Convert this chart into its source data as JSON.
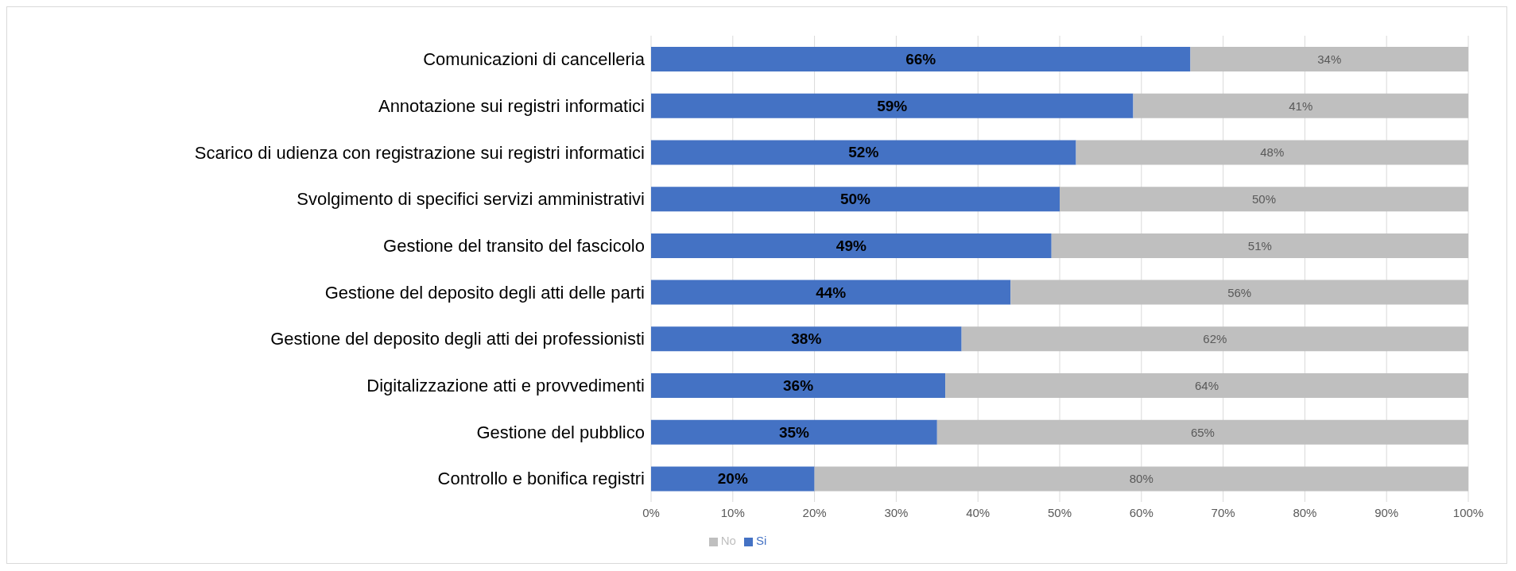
{
  "chart_data": {
    "type": "bar",
    "orientation": "horizontal",
    "stacked": true,
    "categories": [
      "Comunicazioni di cancelleria",
      "Annotazione sui registri informatici",
      "Scarico di udienza con registrazione sui registri informatici",
      "Svolgimento di specifici servizi amministrativi",
      "Gestione del transito del fascicolo",
      "Gestione del deposito degli atti delle parti",
      "Gestione del deposito degli atti dei professionisti",
      "Digitalizzazione atti e provvedimenti",
      "Gestione del pubblico",
      "Controllo e bonifica registri"
    ],
    "series": [
      {
        "name": "Si",
        "color": "#4472c4",
        "values": [
          66,
          59,
          52,
          50,
          49,
          44,
          38,
          36,
          35,
          20
        ],
        "value_labels": [
          "66%",
          "59%",
          "52%",
          "50%",
          "49%",
          "44%",
          "38%",
          "36%",
          "35%",
          "20%"
        ]
      },
      {
        "name": "No",
        "color": "#bfbfbf",
        "values": [
          34,
          41,
          48,
          50,
          51,
          56,
          62,
          64,
          65,
          80
        ],
        "value_labels": [
          "34%",
          "41%",
          "48%",
          "50%",
          "51%",
          "56%",
          "62%",
          "64%",
          "65%",
          "80%"
        ]
      }
    ],
    "xlim": [
      0,
      100
    ],
    "xticks": [
      {
        "value": 0,
        "label": "0%"
      },
      {
        "value": 10,
        "label": "10%"
      },
      {
        "value": 20,
        "label": "20%"
      },
      {
        "value": 30,
        "label": "30%"
      },
      {
        "value": 40,
        "label": "40%"
      },
      {
        "value": 50,
        "label": "50%"
      },
      {
        "value": 60,
        "label": "60%"
      },
      {
        "value": 70,
        "label": "70%"
      },
      {
        "value": 80,
        "label": "80%"
      },
      {
        "value": 90,
        "label": "90%"
      },
      {
        "value": 100,
        "label": "100%"
      }
    ],
    "grid": "x",
    "legend": "bottom"
  }
}
